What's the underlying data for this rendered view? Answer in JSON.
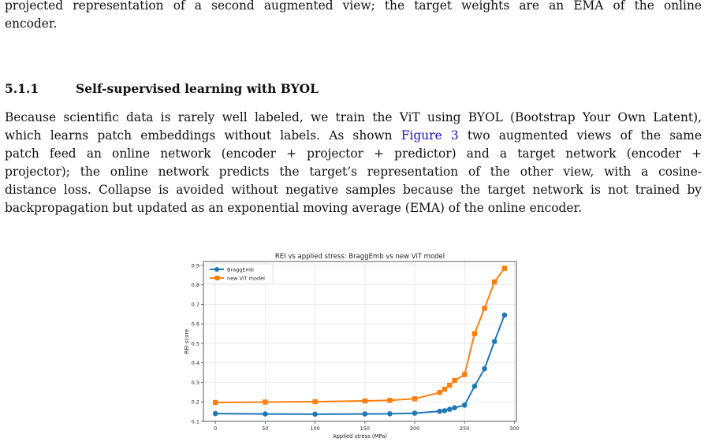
{
  "intro": {
    "lines": [
      "projected representation of a second augmented view; the target weights are an EMA of the online",
      "encoder."
    ]
  },
  "section": {
    "number": "5.1.1",
    "title": "Self-supervised learning with BYOL"
  },
  "body": {
    "line1": "Because scientific data is rarely well labeled, we train the ViT using BYOL (Bootstrap Your Own Latent),",
    "line2_before": "which learns patch embeddings without labels. As shown ",
    "line2_link": "Figure 3",
    "line2_after": " two augmented views of the same",
    "line3": "patch feed an online network (encoder + projector + predictor) and a target network (encoder +",
    "line4": "projector); the online network predicts the target’s representation of the other view, with a cosine-",
    "line5": "distance loss. Collapse is avoided without negative samples because the target network is not trained by",
    "line6": "backpropagation but updated as an exponential moving average (EMA) of the online encoder."
  },
  "chart_data": {
    "type": "line",
    "title": "REI vs applied stress: BraggEmb vs new ViT model",
    "xlabel": "Applied stress (MPa)",
    "ylabel": "REI score",
    "xlim": [
      -12,
      302
    ],
    "ylim": [
      0.1,
      0.92
    ],
    "xticks": [
      0,
      50,
      100,
      150,
      200,
      250,
      300
    ],
    "yticks": [
      0.1,
      0.2,
      0.3,
      0.4,
      0.5,
      0.6,
      0.7,
      0.8,
      0.9
    ],
    "grid": true,
    "legend_position": "top-left",
    "series": [
      {
        "name": "BraggEmb",
        "color": "#1f77b4",
        "marker": "circle",
        "x": [
          0,
          50,
          100,
          150,
          175,
          200,
          225,
          230,
          235,
          240,
          250,
          260,
          270,
          280,
          290
        ],
        "y": [
          0.14,
          0.138,
          0.137,
          0.138,
          0.139,
          0.142,
          0.152,
          0.155,
          0.162,
          0.17,
          0.183,
          0.28,
          0.37,
          0.51,
          0.645
        ]
      },
      {
        "name": "new ViT model",
        "color": "#ff7f0e",
        "marker": "square",
        "x": [
          0,
          50,
          100,
          150,
          175,
          200,
          225,
          230,
          235,
          240,
          250,
          260,
          270,
          280,
          290
        ],
        "y": [
          0.197,
          0.199,
          0.201,
          0.205,
          0.208,
          0.216,
          0.248,
          0.265,
          0.285,
          0.31,
          0.34,
          0.55,
          0.68,
          0.815,
          0.885
        ]
      }
    ]
  }
}
